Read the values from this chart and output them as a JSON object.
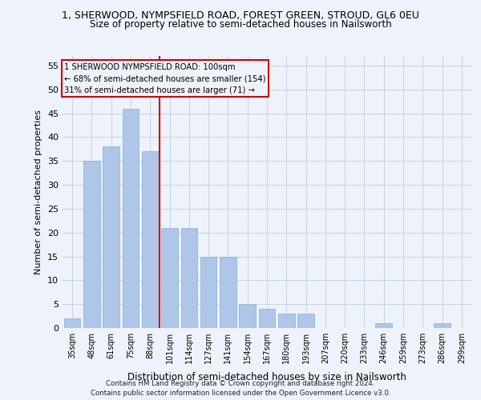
{
  "title": "1, SHERWOOD, NYMPSFIELD ROAD, FOREST GREEN, STROUD, GL6 0EU",
  "subtitle": "Size of property relative to semi-detached houses in Nailsworth",
  "xlabel": "Distribution of semi-detached houses by size in Nailsworth",
  "ylabel": "Number of semi-detached properties",
  "categories": [
    "35sqm",
    "48sqm",
    "61sqm",
    "75sqm",
    "88sqm",
    "101sqm",
    "114sqm",
    "127sqm",
    "141sqm",
    "154sqm",
    "167sqm",
    "180sqm",
    "193sqm",
    "207sqm",
    "220sqm",
    "233sqm",
    "246sqm",
    "259sqm",
    "273sqm",
    "286sqm",
    "299sqm"
  ],
  "values": [
    2,
    35,
    38,
    46,
    37,
    21,
    21,
    15,
    15,
    5,
    4,
    3,
    3,
    0,
    0,
    0,
    1,
    0,
    0,
    1,
    0
  ],
  "bar_color": "#aec6e8",
  "bar_edge_color": "#8fb8d8",
  "highlight_index": 5,
  "highlight_color": "#cc0000",
  "ylim": [
    0,
    57
  ],
  "yticks": [
    0,
    5,
    10,
    15,
    20,
    25,
    30,
    35,
    40,
    45,
    50,
    55
  ],
  "annotation_line1": "1 SHERWOOD NYMPSFIELD ROAD: 100sqm",
  "annotation_line2": "← 68% of semi-detached houses are smaller (154)",
  "annotation_line3": "31% of semi-detached houses are larger (71) →",
  "footer1": "Contains HM Land Registry data © Crown copyright and database right 2024.",
  "footer2": "Contains public sector information licensed under the Open Government Licence v3.0.",
  "grid_color": "#c8d0e0",
  "bg_color": "#eef2fa"
}
